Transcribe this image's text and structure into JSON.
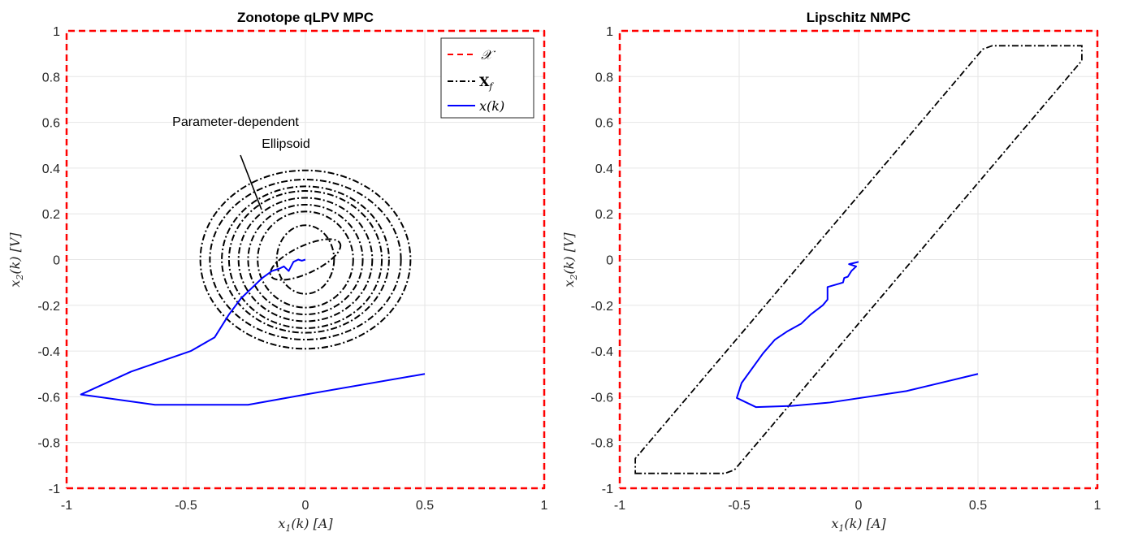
{
  "chart_data": [
    {
      "type": "line",
      "title": "Zonotope qLPV MPC",
      "xlabel": "x1(k) [A]",
      "ylabel": "x2(k) [V]",
      "xlim": [
        -1,
        1
      ],
      "ylim": [
        -1,
        1
      ],
      "xticks": [
        "-1",
        "-0.5",
        "0",
        "0.5",
        "1"
      ],
      "yticks": [
        "-1",
        "-0.8",
        "-0.6",
        "-0.4",
        "-0.2",
        "0",
        "0.2",
        "0.4",
        "0.6",
        "0.8",
        "1"
      ],
      "grid": true,
      "legend_position": "top-right",
      "legend": [
        "𝒳",
        "X_f",
        "x(k)"
      ],
      "annotation": [
        "Parameter-dependent",
        "Ellipsoid"
      ],
      "colors": {
        "constraint": "#ff0000",
        "terminal": "#000000",
        "trajectory": "#0000ff"
      },
      "series": [
        {
          "name": "𝒳",
          "style": "dashed",
          "color": "#ff0000",
          "x": [
            -1,
            1,
            1,
            -1,
            -1
          ],
          "y": [
            -1,
            -1,
            1,
            1,
            -1
          ]
        },
        {
          "name": "X_f",
          "style": "dashdot",
          "color": "#000000",
          "ellipses": [
            {
              "cx": 0.0,
              "cy": 0.0,
              "rx": 0.44,
              "ry": 0.39
            },
            {
              "cx": 0.0,
              "cy": 0.0,
              "rx": 0.4,
              "ry": 0.35
            },
            {
              "cx": 0.0,
              "cy": 0.0,
              "rx": 0.35,
              "ry": 0.32
            },
            {
              "cx": 0.0,
              "cy": 0.0,
              "rx": 0.32,
              "ry": 0.3
            },
            {
              "cx": 0.0,
              "cy": 0.0,
              "rx": 0.28,
              "ry": 0.27
            },
            {
              "cx": 0.0,
              "cy": 0.0,
              "rx": 0.24,
              "ry": 0.24
            },
            {
              "cx": 0.0,
              "cy": 0.0,
              "rx": 0.2,
              "ry": 0.21
            },
            {
              "cx": 0.0,
              "cy": 0.0,
              "rx": 0.12,
              "ry": 0.15
            },
            {
              "cx": 0.0,
              "cy": 0.0,
              "rx": 0.16,
              "ry": 0.06
            }
          ]
        },
        {
          "name": "x(k)",
          "style": "solid",
          "color": "#0000ff",
          "x": [
            0.5,
            0.0,
            -0.24,
            -0.63,
            -0.94,
            -0.73,
            -0.48,
            -0.38,
            -0.32,
            -0.27,
            -0.22,
            -0.18,
            -0.14,
            -0.11,
            -0.09,
            -0.07,
            -0.05,
            -0.03,
            -0.015,
            0.0
          ],
          "y": [
            -0.5,
            -0.59,
            -0.635,
            -0.635,
            -0.59,
            -0.49,
            -0.4,
            -0.34,
            -0.24,
            -0.17,
            -0.12,
            -0.08,
            -0.05,
            -0.04,
            -0.03,
            -0.05,
            -0.01,
            0.0,
            -0.005,
            0.0
          ]
        }
      ]
    },
    {
      "type": "line",
      "title": "Lipschitz NMPC",
      "xlabel": "x1(k) [A]",
      "ylabel": "x2(k) [V]",
      "xlim": [
        -1,
        1
      ],
      "ylim": [
        -1,
        1
      ],
      "xticks": [
        "-1",
        "-0.5",
        "0",
        "0.5",
        "1"
      ],
      "yticks": [
        "-1",
        "-0.8",
        "-0.6",
        "-0.4",
        "-0.2",
        "0",
        "0.2",
        "0.4",
        "0.6",
        "0.8",
        "1"
      ],
      "grid": true,
      "series": [
        {
          "name": "𝒳",
          "style": "dashed",
          "color": "#ff0000",
          "x": [
            -1,
            1,
            1,
            -1,
            -1
          ],
          "y": [
            -1,
            -1,
            1,
            1,
            -1
          ]
        },
        {
          "name": "X_f",
          "style": "dashdot",
          "color": "#000000",
          "x": [
            -0.935,
            -0.935,
            -0.56,
            -0.52,
            0.52,
            0.56,
            0.935,
            0.935,
            -0.935
          ],
          "y": [
            -0.935,
            -0.87,
            -0.935,
            -0.92,
            0.92,
            0.935,
            0.935,
            0.87,
            -0.935
          ],
          "closed_path": [
            [
              -0.935,
              -0.935
            ],
            [
              -0.56,
              -0.935
            ],
            [
              -0.52,
              -0.92
            ],
            [
              0.935,
              0.87
            ],
            [
              0.935,
              0.935
            ],
            [
              0.56,
              0.935
            ],
            [
              0.52,
              0.92
            ],
            [
              -0.935,
              -0.87
            ]
          ]
        },
        {
          "name": "x(k)",
          "style": "solid",
          "color": "#0000ff",
          "x": [
            0.5,
            0.2,
            -0.12,
            -0.28,
            -0.43,
            -0.51,
            -0.49,
            -0.4,
            -0.35,
            -0.3,
            -0.24,
            -0.2,
            -0.15,
            -0.13,
            -0.13,
            -0.08,
            -0.065,
            -0.06,
            -0.045,
            -0.03,
            -0.01,
            -0.04,
            -0.02,
            0.0
          ],
          "y": [
            -0.5,
            -0.575,
            -0.625,
            -0.64,
            -0.645,
            -0.605,
            -0.54,
            -0.41,
            -0.35,
            -0.315,
            -0.28,
            -0.24,
            -0.2,
            -0.175,
            -0.12,
            -0.105,
            -0.1,
            -0.08,
            -0.075,
            -0.05,
            -0.03,
            -0.02,
            -0.015,
            -0.01
          ]
        }
      ]
    }
  ]
}
